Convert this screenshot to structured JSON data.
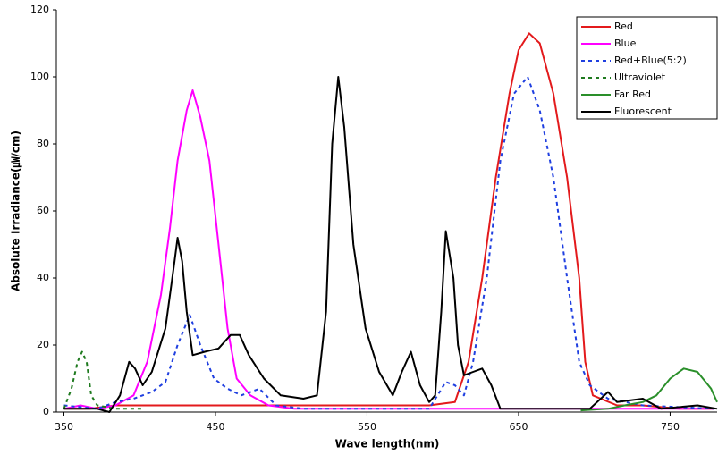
{
  "chart_data": {
    "type": "line",
    "x_label": "Wave length(nm)",
    "y_label": "Absolute Irradiance(㎼/cm)",
    "xlim": [
      345,
      781
    ],
    "xticks": [
      350,
      450,
      550,
      650,
      750
    ],
    "ylim": [
      0,
      120
    ],
    "yticks": [
      0,
      20,
      40,
      60,
      80,
      100,
      120
    ],
    "grid": false,
    "legend": "upper right",
    "series": [
      {
        "name": "Red",
        "color": "#e31a1c",
        "style": "solid",
        "x": [
          350,
          367,
          384,
          425,
          591,
          608,
          617,
          626,
          635,
          644,
          650,
          657,
          664,
          673,
          682,
          690,
          694,
          699,
          715,
          732,
          756,
          779
        ],
        "values": [
          1,
          1,
          2,
          2,
          2,
          3,
          15,
          40,
          70,
          95,
          108,
          113,
          110,
          95,
          70,
          40,
          15,
          5,
          2,
          2,
          1,
          1
        ]
      },
      {
        "name": "Blue",
        "color": "#ff00ff",
        "style": "solid",
        "x": [
          350,
          361,
          372,
          384,
          396,
          405,
          414,
          420,
          425,
          431,
          435,
          440,
          446,
          452,
          458,
          464,
          473,
          485,
          502,
          779
        ],
        "values": [
          1,
          2,
          1,
          2,
          5,
          15,
          35,
          55,
          75,
          90,
          96,
          88,
          75,
          50,
          25,
          10,
          5,
          2,
          1,
          1
        ]
      },
      {
        "name": "Red+Blue(5:2)",
        "color": "#1f3fe0",
        "style": "dotted",
        "x": [
          350,
          372,
          384,
          396,
          408,
          417,
          425,
          433,
          440,
          449,
          458,
          467,
          479,
          490,
          508,
          591,
          602,
          608,
          614,
          620,
          629,
          638,
          647,
          656,
          664,
          673,
          682,
          690,
          697,
          709,
          732,
          779
        ],
        "values": [
          2,
          1,
          3,
          4,
          6,
          9,
          20,
          29,
          20,
          10,
          7,
          5,
          7,
          2,
          1,
          1,
          9,
          8,
          5,
          15,
          40,
          75,
          95,
          100,
          90,
          70,
          40,
          15,
          8,
          4,
          2,
          1
        ]
      },
      {
        "name": "Ultraviolet",
        "color": "#1f7a1f",
        "style": "dotted",
        "x": [
          350,
          355,
          359,
          362,
          365,
          368,
          372,
          384,
          402
        ],
        "values": [
          1,
          7,
          15,
          18,
          15,
          5,
          2,
          1,
          1
        ]
      },
      {
        "name": "Far Red",
        "color": "#2a8f2a",
        "style": "solid",
        "x": [
          691,
          709,
          720,
          732,
          741,
          750,
          759,
          768,
          777,
          781
        ],
        "values": [
          0.5,
          1,
          2,
          3,
          5,
          10,
          13,
          12,
          7,
          3
        ]
      },
      {
        "name": "Fluorescent",
        "color": "#000000",
        "style": "solid",
        "x": [
          350,
          372,
          380,
          387,
          393,
          397,
          402,
          408,
          417,
          423,
          425,
          428,
          431,
          435,
          443,
          452,
          460,
          466,
          472,
          482,
          493,
          508,
          517,
          523,
          527,
          531,
          535,
          541,
          549,
          558,
          567,
          573,
          579,
          585,
          591,
          595,
          599,
          602,
          607,
          610,
          614,
          620,
          626,
          632,
          638,
          661,
          697,
          709,
          715,
          732,
          744,
          768,
          781
        ],
        "values": [
          1,
          1,
          0,
          5,
          15,
          13,
          8,
          12,
          25,
          45,
          52,
          45,
          30,
          17,
          18,
          19,
          23,
          23,
          17,
          10,
          5,
          4,
          5,
          30,
          80,
          100,
          85,
          50,
          25,
          12,
          5,
          12,
          18,
          8,
          3,
          5,
          30,
          54,
          40,
          20,
          11,
          12,
          13,
          8,
          1,
          1,
          1,
          6,
          3,
          4,
          1,
          2,
          1
        ]
      }
    ]
  }
}
